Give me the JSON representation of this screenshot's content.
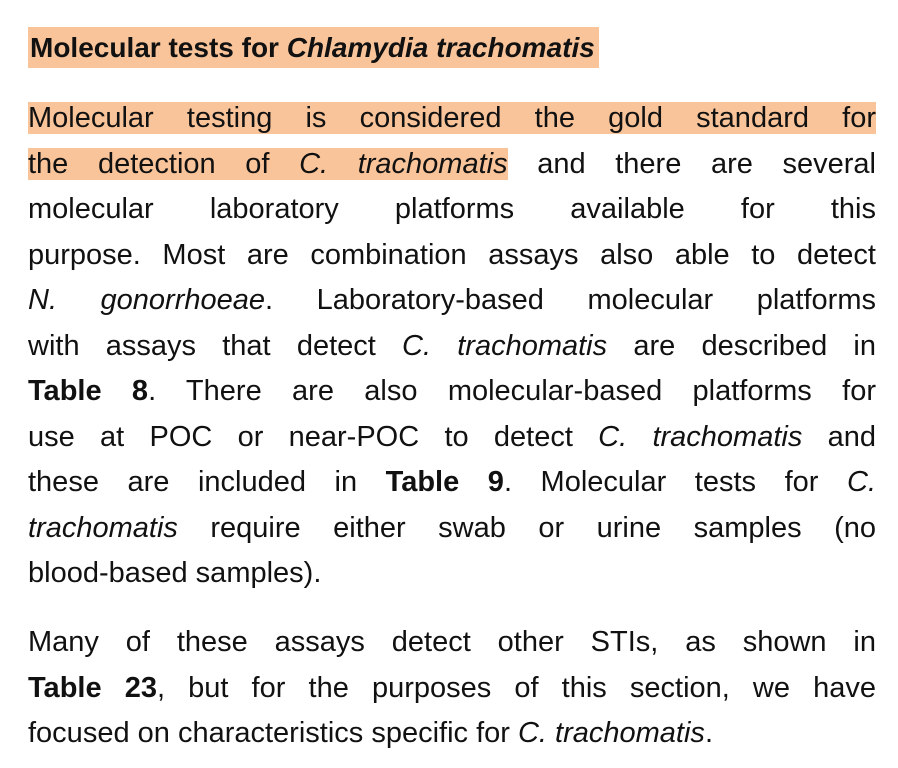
{
  "colors": {
    "highlight": "#f9c49a",
    "text": "#111111"
  },
  "heading": {
    "text": "Molecular tests for ",
    "italic": "Chlamydia trachomatis"
  },
  "paragraphs": [
    {
      "lines": [
        [
          {
            "t": "Molecular testing is considered the gold standard for",
            "hl": true
          }
        ],
        [
          {
            "t": "the detection of ",
            "hl": true
          },
          {
            "t": "C. trachomatis",
            "hl": true,
            "i": true
          },
          {
            "t": " and there are several"
          }
        ],
        [
          {
            "t": "molecular laboratory platforms available for this"
          }
        ],
        [
          {
            "t": "purpose. Most are combination assays also able to detect"
          }
        ],
        [
          {
            "t": "N. gonorrhoeae",
            "i": true
          },
          {
            "t": ". Laboratory-based molecular platforms"
          }
        ],
        [
          {
            "t": "with assays that detect "
          },
          {
            "t": "C. trachomatis",
            "i": true
          },
          {
            "t": " are described in"
          }
        ],
        [
          {
            "t": "Table 8",
            "b": true
          },
          {
            "t": ". There are also molecular-based platforms for"
          }
        ],
        [
          {
            "t": "use at POC or near-POC to detect "
          },
          {
            "t": "C. trachomatis",
            "i": true
          },
          {
            "t": " and"
          }
        ],
        [
          {
            "t": "these are included in "
          },
          {
            "t": "Table 9",
            "b": true
          },
          {
            "t": ". Molecular tests for "
          },
          {
            "t": "C.",
            "i": true
          }
        ],
        [
          {
            "t": "trachomatis",
            "i": true
          },
          {
            "t": " require either swab or urine samples (no"
          }
        ],
        [
          {
            "t": "blood-based samples)."
          }
        ]
      ]
    },
    {
      "lines": [
        [
          {
            "t": "Many of these assays detect other STIs, as shown in"
          }
        ],
        [
          {
            "t": "Table 23",
            "b": true
          },
          {
            "t": ", but for the purposes of this section, we have"
          }
        ],
        [
          {
            "t": "focused on characteristics specific for "
          },
          {
            "t": "C. trachomatis",
            "i": true
          },
          {
            "t": "."
          }
        ]
      ]
    }
  ]
}
